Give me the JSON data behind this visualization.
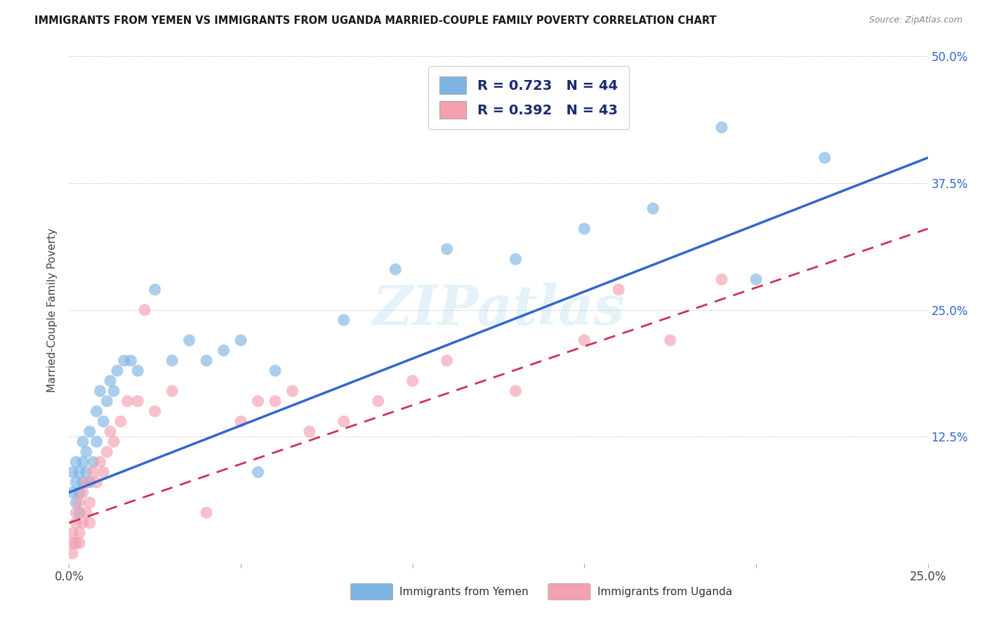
{
  "title": "IMMIGRANTS FROM YEMEN VS IMMIGRANTS FROM UGANDA MARRIED-COUPLE FAMILY POVERTY CORRELATION CHART",
  "source": "Source: ZipAtlas.com",
  "ylabel": "Married-Couple Family Poverty",
  "xlim": [
    0.0,
    0.25
  ],
  "ylim": [
    0.0,
    0.5
  ],
  "xticks": [
    0.0,
    0.05,
    0.1,
    0.15,
    0.2,
    0.25
  ],
  "yticks": [
    0.0,
    0.125,
    0.25,
    0.375,
    0.5
  ],
  "xtick_labels": [
    "0.0%",
    "",
    "",
    "",
    "",
    "25.0%"
  ],
  "ytick_labels_right": [
    "",
    "12.5%",
    "25.0%",
    "37.5%",
    "50.0%"
  ],
  "grid_color": "#cccccc",
  "background_color": "#ffffff",
  "watermark": "ZIPatlas",
  "legend_r1": "R = 0.723",
  "legend_n1": "N = 44",
  "legend_r2": "R = 0.392",
  "legend_n2": "N = 43",
  "color_yemen": "#7EB4E3",
  "color_uganda": "#F4A0B0",
  "color_line_yemen": "#3366CC",
  "color_line_uganda": "#CC3355",
  "color_tick_right": "#3366CC",
  "legend_label1": "Immigrants from Yemen",
  "legend_label2": "Immigrants from Uganda",
  "yemen_x": [
    0.001,
    0.001,
    0.002,
    0.002,
    0.002,
    0.003,
    0.003,
    0.003,
    0.004,
    0.004,
    0.004,
    0.005,
    0.005,
    0.006,
    0.006,
    0.007,
    0.008,
    0.008,
    0.009,
    0.01,
    0.011,
    0.012,
    0.013,
    0.014,
    0.016,
    0.018,
    0.02,
    0.025,
    0.03,
    0.035,
    0.04,
    0.05,
    0.06,
    0.08,
    0.095,
    0.11,
    0.13,
    0.15,
    0.17,
    0.19,
    0.055,
    0.045,
    0.22,
    0.2
  ],
  "yemen_y": [
    0.07,
    0.09,
    0.08,
    0.1,
    0.06,
    0.07,
    0.09,
    0.05,
    0.08,
    0.1,
    0.12,
    0.09,
    0.11,
    0.08,
    0.13,
    0.1,
    0.12,
    0.15,
    0.17,
    0.14,
    0.16,
    0.18,
    0.17,
    0.19,
    0.2,
    0.2,
    0.19,
    0.27,
    0.2,
    0.22,
    0.2,
    0.22,
    0.19,
    0.24,
    0.29,
    0.31,
    0.3,
    0.33,
    0.35,
    0.43,
    0.09,
    0.21,
    0.4,
    0.28
  ],
  "uganda_x": [
    0.001,
    0.001,
    0.001,
    0.002,
    0.002,
    0.002,
    0.003,
    0.003,
    0.003,
    0.004,
    0.004,
    0.005,
    0.005,
    0.006,
    0.006,
    0.007,
    0.008,
    0.009,
    0.01,
    0.011,
    0.012,
    0.013,
    0.015,
    0.017,
    0.02,
    0.022,
    0.025,
    0.03,
    0.04,
    0.05,
    0.055,
    0.065,
    0.07,
    0.08,
    0.09,
    0.1,
    0.11,
    0.13,
    0.15,
    0.16,
    0.175,
    0.19,
    0.06
  ],
  "uganda_y": [
    0.01,
    0.02,
    0.03,
    0.02,
    0.04,
    0.05,
    0.03,
    0.06,
    0.02,
    0.04,
    0.07,
    0.05,
    0.08,
    0.04,
    0.06,
    0.09,
    0.08,
    0.1,
    0.09,
    0.11,
    0.13,
    0.12,
    0.14,
    0.16,
    0.16,
    0.25,
    0.15,
    0.17,
    0.05,
    0.14,
    0.16,
    0.17,
    0.13,
    0.14,
    0.16,
    0.18,
    0.2,
    0.17,
    0.22,
    0.27,
    0.22,
    0.28,
    0.16
  ],
  "line_yemen_x0": 0.0,
  "line_yemen_y0": 0.07,
  "line_yemen_x1": 0.25,
  "line_yemen_y1": 0.4,
  "line_uganda_x0": 0.0,
  "line_uganda_y0": 0.04,
  "line_uganda_x1": 0.25,
  "line_uganda_y1": 0.33
}
